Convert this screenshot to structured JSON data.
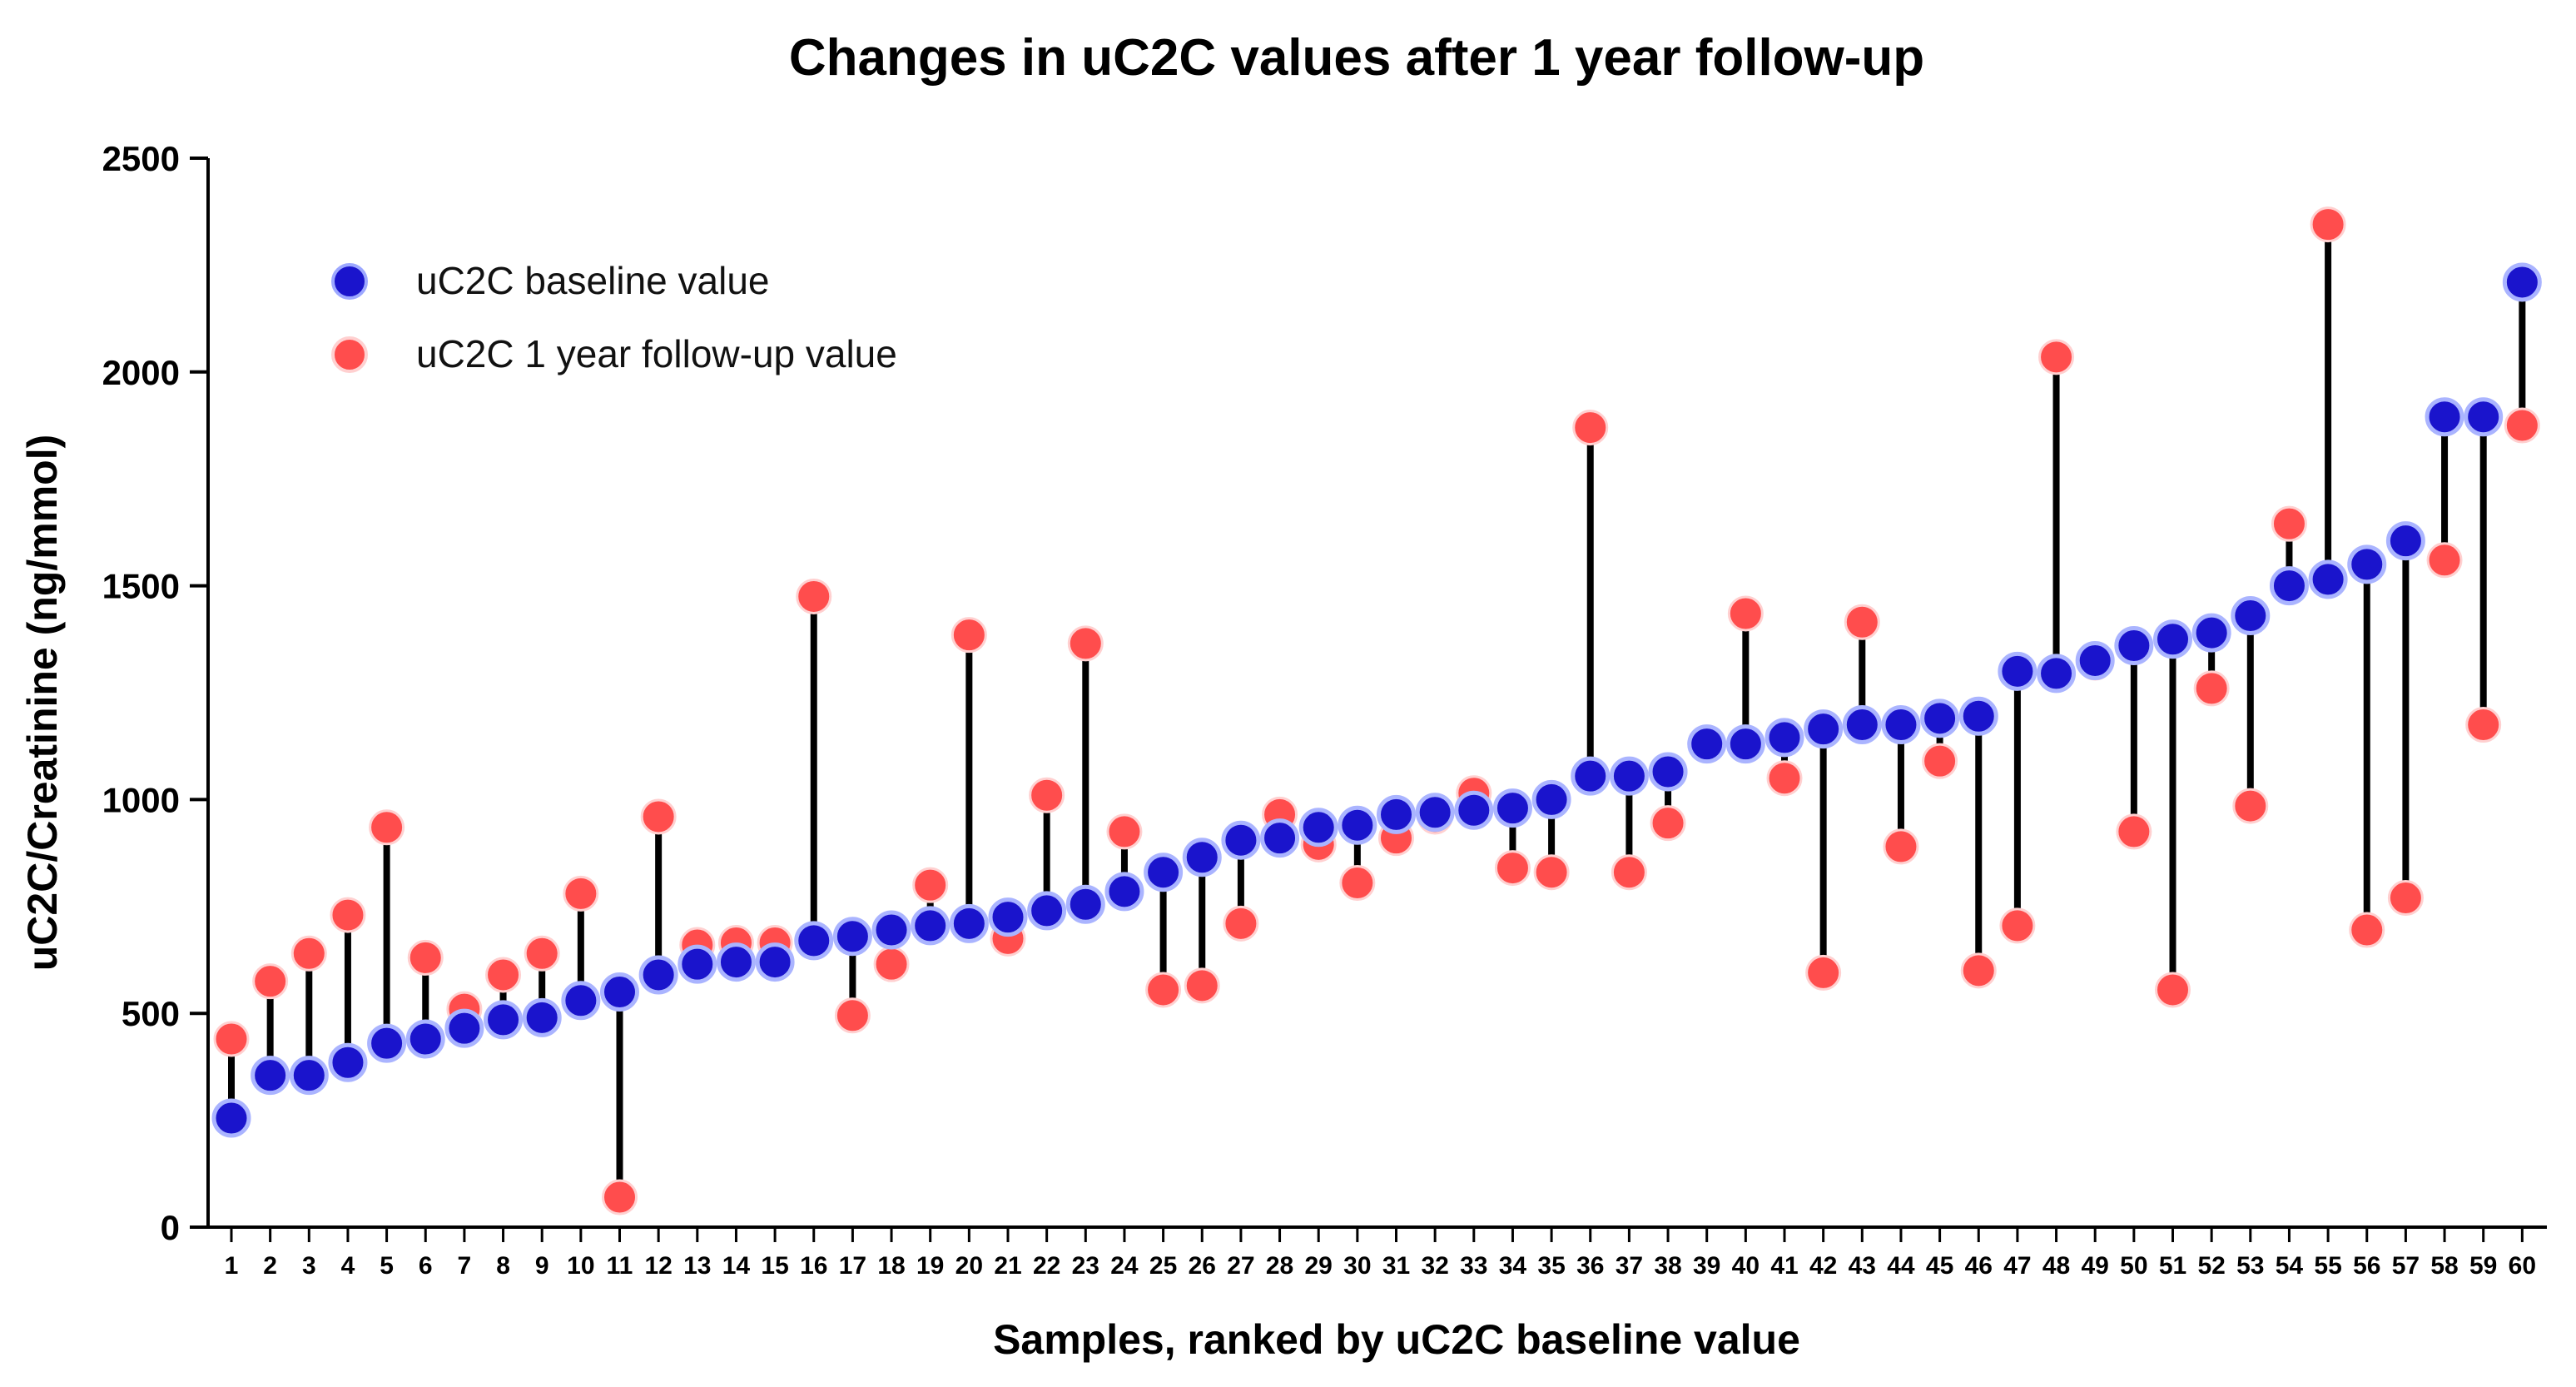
{
  "chart_data": {
    "type": "scatter",
    "title": "Changes in uC2C values after 1 year follow-up",
    "xlabel": "Samples, ranked by uC2C baseline value",
    "ylabel": "uC2C/Creatinine (ng/mmol)",
    "ylim": [
      0,
      2500
    ],
    "yticks": [
      0,
      500,
      1000,
      1500,
      2000,
      2500
    ],
    "ytick_labels": [
      "0",
      "500",
      "1000",
      "1500",
      "2000",
      "2500"
    ],
    "x": [
      1,
      2,
      3,
      4,
      5,
      6,
      7,
      8,
      9,
      10,
      11,
      12,
      13,
      14,
      15,
      16,
      17,
      18,
      19,
      20,
      21,
      22,
      23,
      24,
      25,
      26,
      27,
      28,
      29,
      30,
      31,
      32,
      33,
      34,
      35,
      36,
      37,
      38,
      39,
      40,
      41,
      42,
      43,
      44,
      45,
      46,
      47,
      48,
      49,
      50,
      51,
      52,
      53,
      54,
      55,
      56,
      57,
      58,
      59,
      60
    ],
    "xtick_labels": [
      "1",
      "2",
      "3",
      "4",
      "5",
      "6",
      "7",
      "8",
      "9",
      "10",
      "11",
      "12",
      "13",
      "14",
      "15",
      "16",
      "17",
      "18",
      "19",
      "20",
      "21",
      "22",
      "23",
      "24",
      "25",
      "26",
      "27",
      "28",
      "29",
      "30",
      "31",
      "32",
      "33",
      "34",
      "35",
      "36",
      "37",
      "38",
      "39",
      "40",
      "41",
      "42",
      "43",
      "44",
      "45",
      "46",
      "47",
      "48",
      "49",
      "50",
      "51",
      "52",
      "53",
      "54",
      "55",
      "56",
      "57",
      "58",
      "59",
      "60"
    ],
    "legend_position": "top-left",
    "series": [
      {
        "name": "uC2C baseline value",
        "color": "#1a14cc",
        "values": [
          255,
          355,
          355,
          385,
          430,
          440,
          465,
          485,
          490,
          530,
          550,
          590,
          615,
          620,
          620,
          670,
          680,
          695,
          705,
          710,
          725,
          740,
          755,
          785,
          830,
          865,
          905,
          910,
          935,
          940,
          965,
          970,
          975,
          980,
          1000,
          1055,
          1055,
          1065,
          1130,
          1130,
          1145,
          1165,
          1175,
          1175,
          1190,
          1195,
          1300,
          1295,
          1325,
          1360,
          1375,
          1390,
          1430,
          1500,
          1515,
          1550,
          1605,
          1895,
          1895,
          2210
        ]
      },
      {
        "name": "uC2C 1 year follow-up value",
        "color": "#ff4d4d",
        "values": [
          440,
          575,
          640,
          730,
          935,
          630,
          510,
          590,
          640,
          780,
          70,
          960,
          660,
          665,
          665,
          1475,
          495,
          615,
          800,
          1385,
          675,
          1010,
          1365,
          925,
          555,
          565,
          710,
          965,
          895,
          805,
          910,
          960,
          1015,
          840,
          830,
          1870,
          830,
          945,
          1130,
          1435,
          1050,
          595,
          1415,
          890,
          1090,
          600,
          705,
          2035,
          1320,
          925,
          555,
          1260,
          985,
          1645,
          2345,
          695,
          770,
          1560,
          1175,
          1875
        ]
      }
    ]
  }
}
